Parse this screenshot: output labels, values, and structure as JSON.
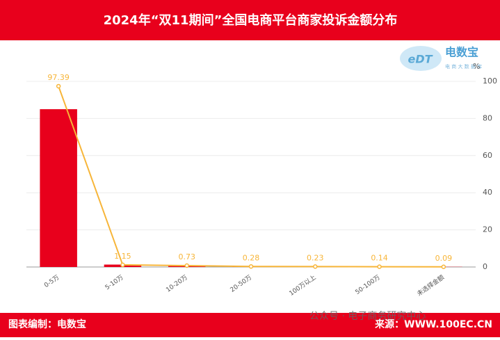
{
  "chart_data": {
    "type": "bar_line",
    "title": "2024年“双11期间”全国电商平台商家投诉金额分布",
    "categories": [
      "0-5万",
      "5-10万",
      "10-20万",
      "20-50万",
      "100万以上",
      "50-100万",
      "未选择金额"
    ],
    "series": [
      {
        "type": "bar",
        "color": "#e8001c",
        "values": [
          85,
          1.3,
          0.8,
          0.3,
          0.2,
          0.1,
          0.1
        ]
      },
      {
        "type": "line",
        "color": "#f7b538",
        "values": [
          97.39,
          1.15,
          0.73,
          0.28,
          0.23,
          0.14,
          0.09
        ]
      }
    ],
    "ylabel": "%",
    "ylim": [
      0,
      100
    ],
    "yticks": [
      0,
      20,
      40,
      60,
      80,
      100
    ],
    "grid": true
  },
  "logo": {
    "text": "电数宝",
    "sub": "电 商 大 数 据 库"
  },
  "footer": {
    "left": "图表编制：电数宝",
    "watermark": "公众号 · 电子商务研究中心",
    "right": "来源：WWW.100EC.CN"
  }
}
